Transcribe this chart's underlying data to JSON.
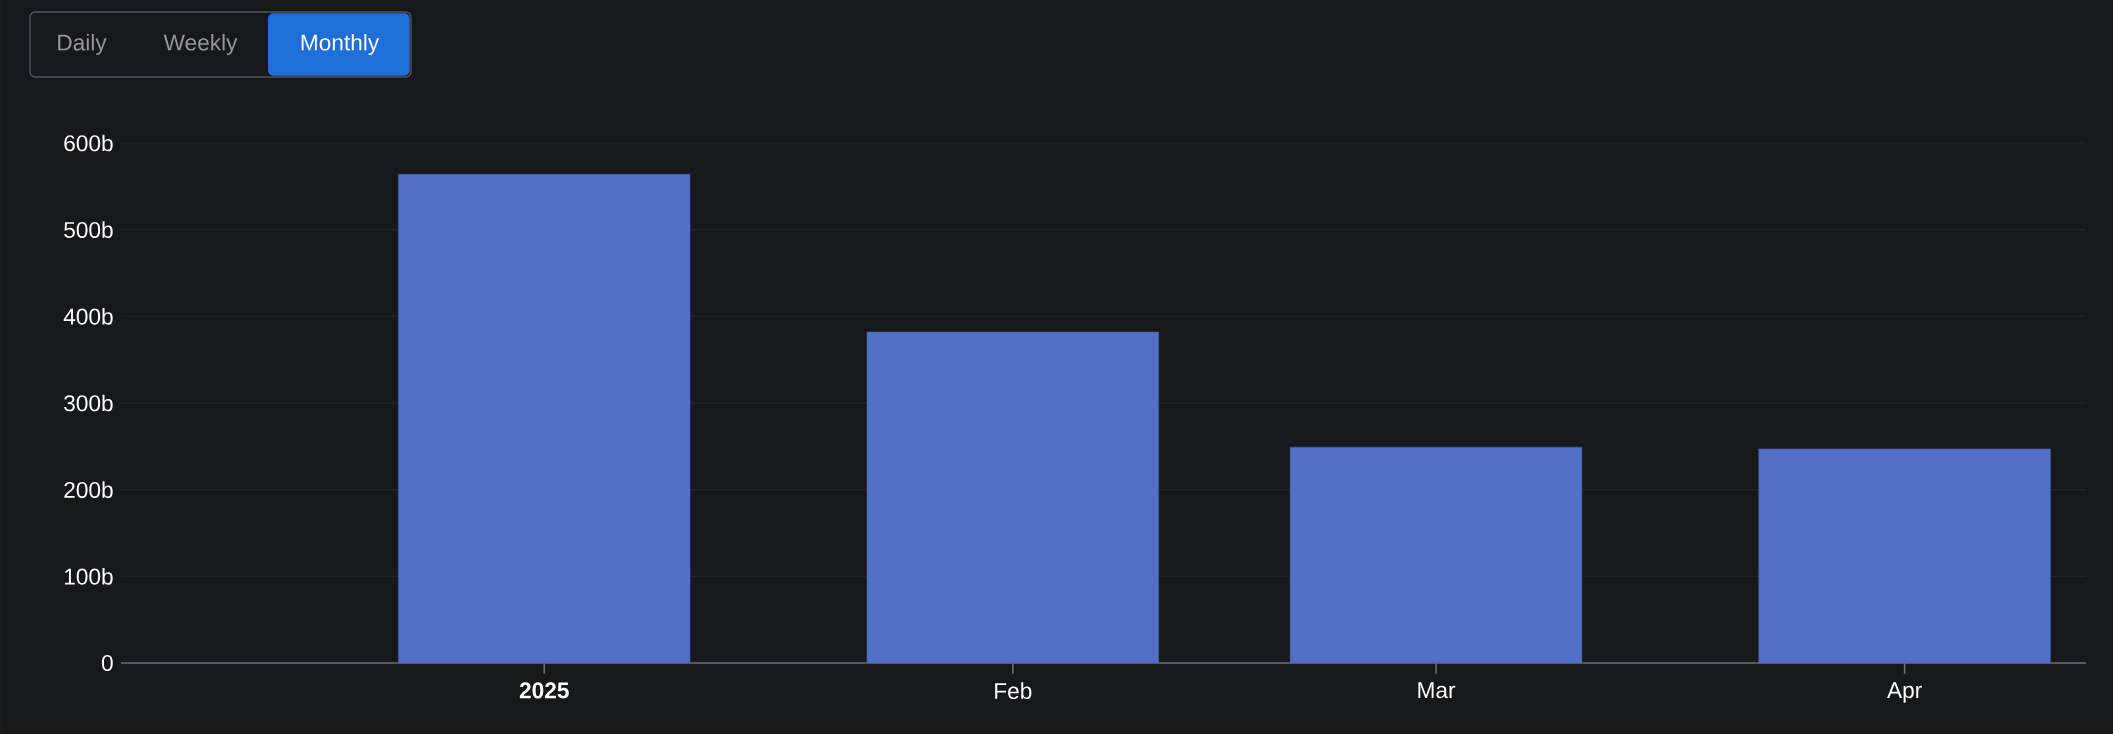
{
  "chart_data": {
    "type": "bar",
    "x": [
      "2025-01-01",
      "2025-02-01",
      "2025-03-01",
      "2025-04-01"
    ],
    "values": [
      564,
      382,
      249,
      247
    ],
    "color": "#5470c6",
    "xlim": [
      "2024-12-04",
      "2025-04-13"
    ],
    "xticks": [
      {
        "value": "2025-01-01",
        "label": "2025"
      },
      {
        "value": "2025-02-01",
        "label": "Feb"
      },
      {
        "value": "2025-03-01",
        "label": "Mar"
      },
      {
        "value": "2025-04-01",
        "label": "Apr"
      }
    ],
    "ylim": [
      0,
      600
    ],
    "yticks": [
      0,
      {
        "value": 100,
        "label": "100b"
      },
      {
        "value": 200,
        "label": "200b"
      },
      {
        "value": 300,
        "label": "300b"
      },
      {
        "value": 400,
        "label": "400b"
      },
      {
        "value": 500,
        "label": "500b"
      },
      {
        "value": 600,
        "label": "600b"
      }
    ],
    "grid": "y",
    "annotations": [
      "Daily",
      "Weekly",
      "Monthly"
    ]
  }
}
